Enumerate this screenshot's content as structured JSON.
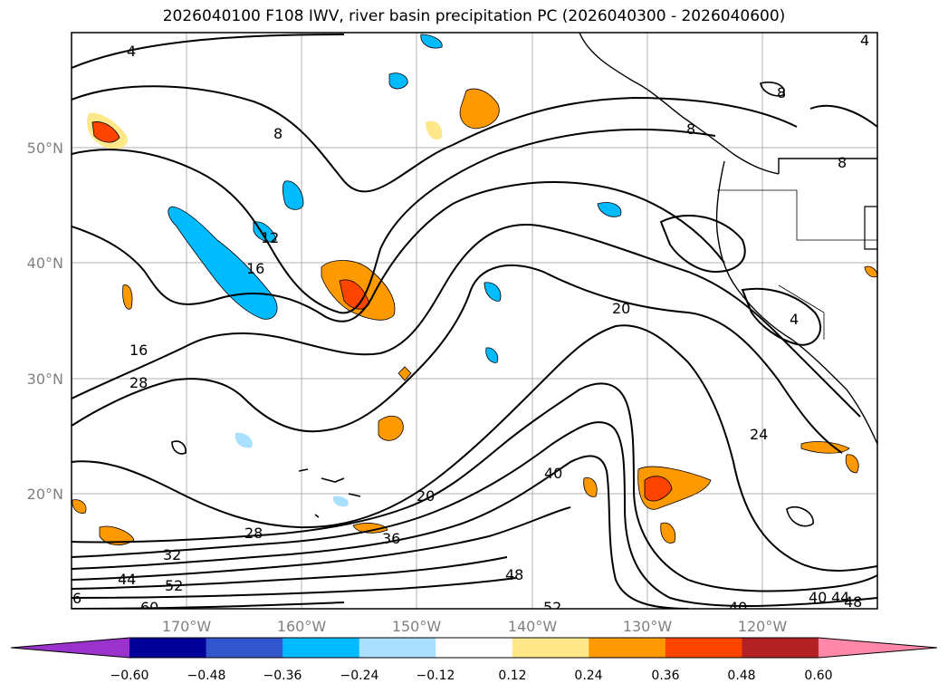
{
  "title": "2026040100 F108 IWV, river basin precipitation PC (2026040300 - 2026040600)",
  "map": {
    "lat_ticks": [
      "50°N",
      "40°N",
      "30°N",
      "20°N"
    ],
    "lon_ticks": [
      "170°W",
      "160°W",
      "150°W",
      "140°W",
      "130°W",
      "120°W"
    ],
    "contour_labels": [
      "4",
      "8",
      "12",
      "16",
      "16",
      "28",
      "20",
      "20",
      "24",
      "40",
      "36",
      "28",
      "32",
      "44",
      "52",
      "60",
      "6",
      "48",
      "52",
      "40",
      "40",
      "44",
      "48",
      "4",
      "8",
      "8",
      "8",
      "4"
    ]
  },
  "colorbar": {
    "ticks": [
      "−0.60",
      "−0.48",
      "−0.36",
      "−0.24",
      "−0.12",
      "0.12",
      "0.24",
      "0.36",
      "0.48",
      "0.60"
    ],
    "colors": [
      "#9933cc",
      "#000099",
      "#3355cc",
      "#00bbff",
      "#aae0ff",
      "#ffffff",
      "#ffe88a",
      "#ff9900",
      "#ff4400",
      "#b22222",
      "#ff88aa"
    ]
  }
}
